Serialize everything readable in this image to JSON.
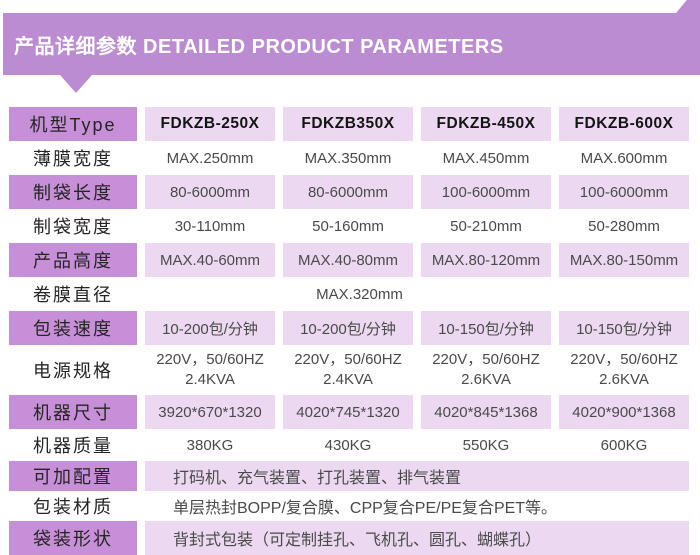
{
  "banner": {
    "title": "产品详细参数 DETAILED PRODUCT PARAMETERS"
  },
  "colors": {
    "banner_purple": "#bc8cd3",
    "label_cell_purple": "#c78fd7",
    "value_cell_light_purple": "#ecd9f1",
    "value_text": "#4a4a4a",
    "label_text": "#252525"
  },
  "table": {
    "rows": [
      {
        "label": "机型Type",
        "values": [
          "FDKZB-250X",
          "FDKZB350X",
          "FDKZB-450X",
          "FDKZB-600X"
        ]
      },
      {
        "label": "薄膜宽度",
        "values": [
          "MAX.250mm",
          "MAX.350mm",
          "MAX.450mm",
          "MAX.600mm"
        ]
      },
      {
        "label": "制袋长度",
        "values": [
          "80-6000mm",
          "80-6000mm",
          "100-6000mm",
          "100-6000mm"
        ]
      },
      {
        "label": "制袋宽度",
        "values": [
          "30-110mm",
          "50-160mm",
          "50-210mm",
          "50-280mm"
        ]
      },
      {
        "label": "产品高度",
        "values": [
          "MAX.40-60mm",
          "MAX.40-80mm",
          "MAX.80-120mm",
          "MAX.80-150mm"
        ]
      },
      {
        "label": "卷膜直径",
        "span_value": "MAX.320mm"
      },
      {
        "label": "包装速度",
        "values": [
          "10-200包/分钟",
          "10-200包/分钟",
          "10-150包/分钟",
          "10-150包/分钟"
        ]
      },
      {
        "label": "电源规格",
        "values": [
          [
            "220V，50/60HZ",
            "2.4KVA"
          ],
          [
            "220V，50/60HZ",
            "2.4KVA"
          ],
          [
            "220V，50/60HZ",
            "2.6KVA"
          ],
          [
            "220V，50/60HZ",
            "2.6KVA"
          ]
        ]
      },
      {
        "label": "机器尺寸",
        "values": [
          "3920*670*1320",
          "4020*745*1320",
          "4020*845*1368",
          "4020*900*1368"
        ]
      },
      {
        "label": "机器质量",
        "values": [
          "380KG",
          "430KG",
          "550KG",
          "600KG"
        ]
      },
      {
        "label": "可加配置",
        "span_value": "打码机、充气装置、打孔装置、排气装置"
      },
      {
        "label": "包装材质",
        "span_value": "单层热封BOPP/复合膜、CPP复合PE/PE复合PET等。"
      },
      {
        "label": "袋装形状",
        "span_value": "背封式包装（可定制挂孔、飞机孔、圆孔、蝴蝶孔）"
      }
    ]
  }
}
